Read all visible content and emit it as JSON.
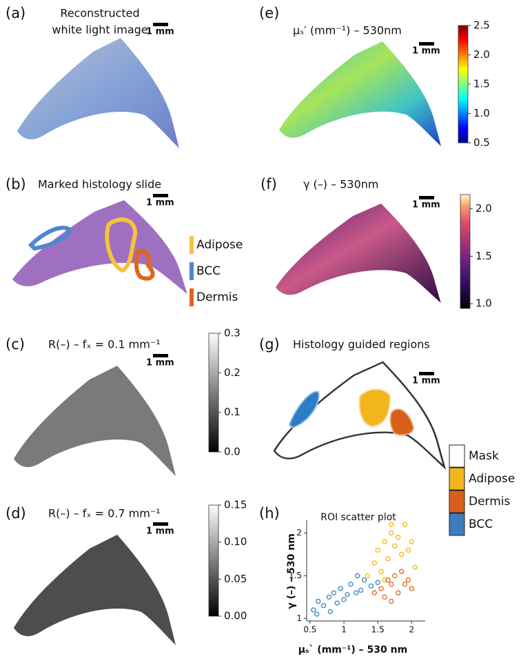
{
  "panels": [
    {
      "label": "(a)",
      "title": [
        "Reconstructed",
        "white light image"
      ],
      "scale_bar": "1 mm"
    },
    {
      "label": "(b)",
      "title": [
        "Marked histology slide"
      ],
      "scale_bar": "1 mm",
      "legend": [
        {
          "name": "Adipose",
          "color": "#f6c33d"
        },
        {
          "name": "BCC",
          "color": "#4e86d0"
        },
        {
          "name": "Dermis",
          "color": "#e0651a"
        }
      ]
    },
    {
      "label": "(c)",
      "title": [
        "R(–) – fₓ = 0.1 mm⁻¹"
      ],
      "scale_bar": "1 mm",
      "colorbar": {
        "lim": [
          0,
          0.3
        ],
        "ticks": [
          {
            "value": 0,
            "label": "0.0"
          },
          0.1,
          0.2,
          0.3
        ]
      }
    },
    {
      "label": "(d)",
      "title": [
        "R(–) – fₓ = 0.7 mm⁻¹"
      ],
      "scale_bar": "1 mm",
      "colorbar": {
        "lim": [
          0,
          0.15
        ],
        "ticks": [
          {
            "value": 0,
            "label": "0.00"
          },
          {
            "value": 0.05,
            "label": "0.05"
          },
          {
            "value": 0.1,
            "label": "0.10"
          },
          {
            "value": 0.15,
            "label": "0.15"
          }
        ]
      }
    },
    {
      "label": "(e)",
      "title": [
        "μₛ′ (mm⁻¹) – 530nm"
      ],
      "scale_bar": "1 mm",
      "colorbar": {
        "lim": [
          0.5,
          2.5
        ],
        "ticks": [
          0.5,
          {
            "value": 1,
            "label": "1.0"
          },
          1.5,
          {
            "value": 2,
            "label": "2.0"
          },
          2.5
        ]
      }
    },
    {
      "label": "(f)",
      "title": [
        "γ (–) – 530nm"
      ],
      "scale_bar": "1 mm",
      "colorbar": {
        "lim": [
          0.95,
          2.15
        ],
        "ticks": [
          {
            "value": 1,
            "label": "1.0"
          },
          1.5,
          {
            "value": 2,
            "label": "2.0"
          }
        ]
      }
    },
    {
      "label": "(g)",
      "title": [
        "Histology guided regions"
      ],
      "scale_bar": "1 mm",
      "legend": [
        {
          "name": "Mask",
          "color": "#ffffff"
        },
        {
          "name": "Adipose",
          "color": "#f2b51c"
        },
        {
          "name": "Dermis",
          "color": "#d9601a"
        },
        {
          "name": "BCC",
          "color": "#3d7cc0"
        }
      ]
    }
  ],
  "chart_data": {
    "type": "scatter",
    "label": "(h)",
    "title": "ROI scatter plot",
    "x_label": "μₛ` (mm⁻¹) – 530 nm",
    "y_label": "γ (–) – 530 nm",
    "xlim": [
      0.45,
      2.2
    ],
    "ylim": [
      0.97,
      2.15
    ],
    "xticks": [
      0.5,
      1,
      1.5,
      2
    ],
    "yticks": [
      1,
      1.5,
      2
    ],
    "series": [
      {
        "name": "BCC",
        "color": "#2e86c1",
        "x": [
          0.55,
          0.62,
          0.7,
          0.78,
          0.85,
          0.9,
          0.95,
          1.0,
          1.05,
          1.1,
          1.18,
          1.25,
          1.3,
          1.4,
          1.5,
          0.6,
          0.8,
          1.2
        ],
        "values": [
          1.1,
          1.2,
          1.15,
          1.25,
          1.3,
          1.18,
          1.35,
          1.22,
          1.28,
          1.4,
          1.3,
          1.33,
          1.45,
          1.38,
          1.42,
          1.05,
          1.08,
          1.5
        ]
      },
      {
        "name": "Adipose",
        "color": "#f5b700",
        "x": [
          1.35,
          1.45,
          1.5,
          1.55,
          1.6,
          1.65,
          1.7,
          1.75,
          1.8,
          1.85,
          1.9,
          1.95,
          2.0,
          2.05,
          1.6,
          1.7
        ],
        "values": [
          1.5,
          1.65,
          1.8,
          1.55,
          1.9,
          1.7,
          2.0,
          1.85,
          1.95,
          1.75,
          2.1,
          1.8,
          1.9,
          1.6,
          1.45,
          2.1
        ]
      },
      {
        "name": "Dermis",
        "color": "#e0640f",
        "x": [
          1.45,
          1.55,
          1.6,
          1.65,
          1.7,
          1.75,
          1.8,
          1.85,
          1.9,
          1.95,
          2.0,
          1.7
        ],
        "values": [
          1.3,
          1.35,
          1.25,
          1.45,
          1.4,
          1.5,
          1.3,
          1.55,
          1.4,
          1.45,
          1.35,
          1.2
        ]
      }
    ]
  }
}
